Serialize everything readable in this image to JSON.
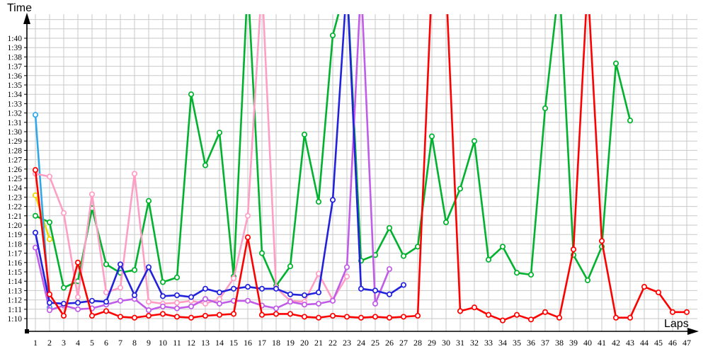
{
  "chart_data": {
    "type": "line",
    "title": "",
    "xlabel": "Laps",
    "ylabel": "Time",
    "x_range": [
      1,
      47
    ],
    "y_axis_tick_labels": [
      "1:10",
      "1:11",
      "1:12",
      "1:13",
      "1:14",
      "1:15",
      "1:16",
      "1:17",
      "1:18",
      "1:19",
      "1:20",
      "1:21",
      "1:22",
      "1:23",
      "1:24",
      "1:25",
      "1:26",
      "1:27",
      "1:28",
      "1:29",
      "1:30",
      "1:31",
      "1:32",
      "1:33",
      "1:34",
      "1:35",
      "1:36",
      "1:37",
      "1:38",
      "1:39",
      "1:40"
    ],
    "y_unit": "minutes:seconds (values stored as seconds, 70 = 1:10)",
    "grid": true,
    "legend": "none",
    "clip_note": "values of 106 are spikes that exceed the chart top (clipped, true value not visible)",
    "series": [
      {
        "name": "green",
        "color": "#00b22d",
        "start_lap": 1,
        "values": [
          81.0,
          80.3,
          73.3,
          74.0,
          81.8,
          75.8,
          74.9,
          75.2,
          82.6,
          73.9,
          74.4,
          94.0,
          86.4,
          89.9,
          74.5,
          106,
          77.0,
          73.5,
          75.6,
          89.7,
          82.5,
          100.3,
          106,
          76.2,
          76.8,
          79.7,
          76.7,
          77.7,
          89.5,
          80.3,
          83.9,
          89.0,
          76.3,
          77.7,
          74.9,
          74.7,
          92.5,
          106,
          76.8,
          74.1,
          77.7,
          97.3,
          91.2
        ]
      },
      {
        "name": "yellow",
        "color": "#ecd800",
        "start_lap": 1,
        "values": [
          83.2,
          78.5
        ]
      },
      {
        "name": "cyan",
        "color": "#2fa8e8",
        "start_lap": 1,
        "values": [
          91.8,
          71.2
        ]
      },
      {
        "name": "pink",
        "color": "#ff9ec4",
        "start_lap": 1,
        "values": [
          85.5,
          85.2,
          81.3,
          72.3,
          83.3,
          72.8,
          73.3,
          85.5,
          71.8,
          71.6,
          71.7,
          71.9,
          71.6,
          72.1,
          74.3,
          81.0,
          106,
          73.3,
          71.9,
          71.8,
          74.8,
          72.0,
          74.5
        ]
      },
      {
        "name": "purple",
        "color": "#c05ce8",
        "start_lap": 1,
        "values": [
          77.6,
          70.9,
          71.4,
          71.0,
          71.1,
          71.5,
          71.9,
          72.1,
          70.9,
          71.3,
          71.1,
          71.3,
          72.1,
          71.6,
          71.9,
          71.9,
          71.4,
          71.1,
          71.8,
          71.5,
          71.6,
          71.9,
          75.5,
          106,
          71.6,
          75.3
        ]
      },
      {
        "name": "blue",
        "color": "#2222dd",
        "start_lap": 1,
        "values": [
          79.2,
          71.7,
          71.6,
          71.7,
          71.9,
          71.8,
          75.8,
          72.5,
          75.5,
          72.4,
          72.5,
          72.3,
          73.2,
          72.8,
          73.2,
          73.4,
          73.2,
          73.2,
          72.6,
          72.5,
          72.8,
          82.7,
          106,
          73.2,
          73.0,
          72.6,
          73.6
        ]
      },
      {
        "name": "red",
        "color": "#fe0000",
        "start_lap": 1,
        "values": [
          85.9,
          72.6,
          70.3,
          76.0,
          70.3,
          70.8,
          70.2,
          70.1,
          70.3,
          70.5,
          70.2,
          70.1,
          70.3,
          70.4,
          70.5,
          78.7,
          70.4,
          70.5,
          70.5,
          70.2,
          70.1,
          70.3,
          70.2,
          70.1,
          70.2,
          70.1,
          70.2,
          70.3,
          106,
          106,
          70.8,
          71.2,
          70.4,
          69.8,
          70.4,
          69.9,
          70.7,
          70.1,
          77.4,
          106,
          78.3,
          70.1,
          70.1,
          73.4,
          72.8,
          70.7,
          70.7
        ]
      }
    ]
  },
  "axes": {
    "y_title": "Time",
    "x_title": "Laps"
  },
  "style": {
    "grid_color": "#c9c9c9",
    "axis_color": "#000000",
    "background": "#ffffff"
  }
}
